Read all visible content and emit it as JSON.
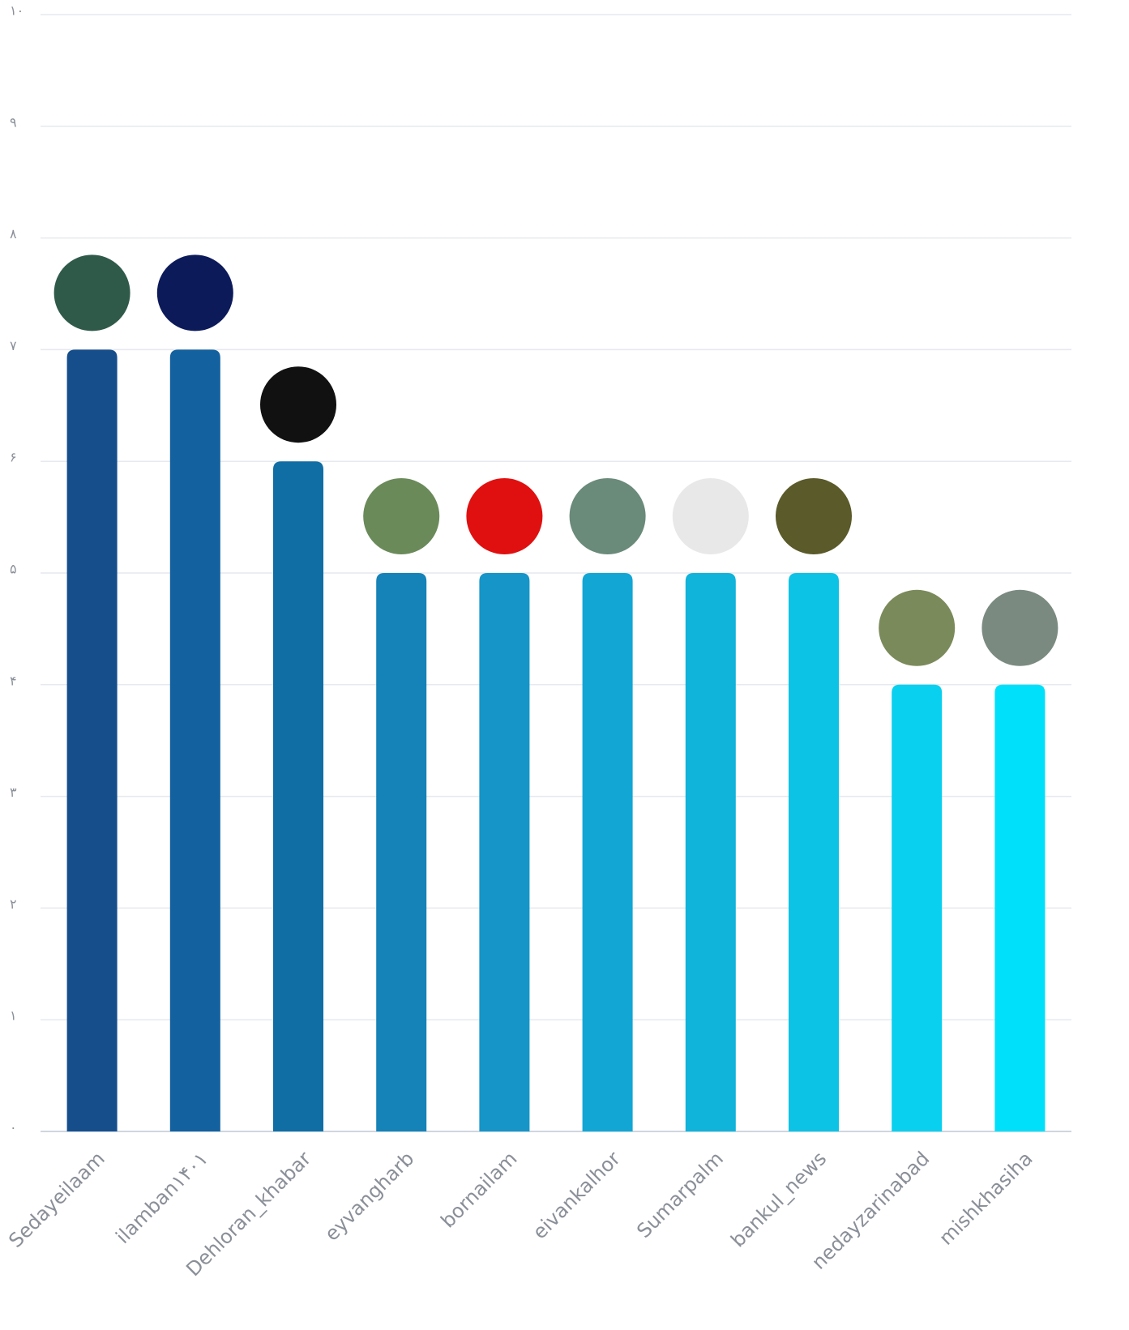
{
  "chart_data": {
    "type": "bar",
    "categories": [
      "Sedayeilaam",
      "ilamban۱۴۰۱",
      "Dehloran_khabar",
      "eyvangharb",
      "bornailam",
      "eivankalhor",
      "Sumarpalm",
      "bankul_news",
      "nedayzarinabad",
      "mishkhasiha"
    ],
    "values": [
      7,
      7,
      6,
      5,
      5,
      5,
      5,
      5,
      4,
      4
    ],
    "colors": [
      "#164e8c",
      "#13619e",
      "#106ea5",
      "#1582b8",
      "#1595c8",
      "#12a6d5",
      "#10b3da",
      "#0cc3e6",
      "#0ad0ef",
      "#00e0fa"
    ],
    "ylim": [
      0,
      10
    ],
    "yticks": [
      {
        "value": 0,
        "label": "۰"
      },
      {
        "value": 1,
        "label": "۱"
      },
      {
        "value": 2,
        "label": "۲"
      },
      {
        "value": 3,
        "label": "۳"
      },
      {
        "value": 4,
        "label": "۴"
      },
      {
        "value": 5,
        "label": "۵"
      },
      {
        "value": 6,
        "label": "۶"
      },
      {
        "value": 7,
        "label": "۷"
      },
      {
        "value": 8,
        "label": "۸"
      },
      {
        "value": 9,
        "label": "۹"
      },
      {
        "value": 10,
        "label": "۱۰"
      }
    ],
    "grid": true
  }
}
